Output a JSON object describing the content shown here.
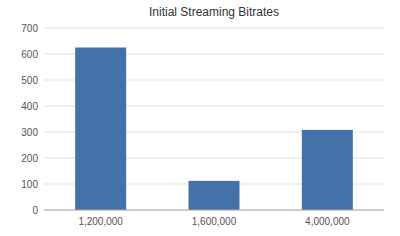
{
  "chart_data": {
    "type": "bar",
    "title": "Initial Streaming Bitrates",
    "categories": [
      "1,200,000",
      "1,600,000",
      "4,000,000"
    ],
    "values": [
      625,
      112,
      308
    ],
    "color": "#4472a8",
    "ylim": [
      0,
      700
    ],
    "yticks": [
      0,
      100,
      200,
      300,
      400,
      500,
      600,
      700
    ],
    "grid": true
  }
}
